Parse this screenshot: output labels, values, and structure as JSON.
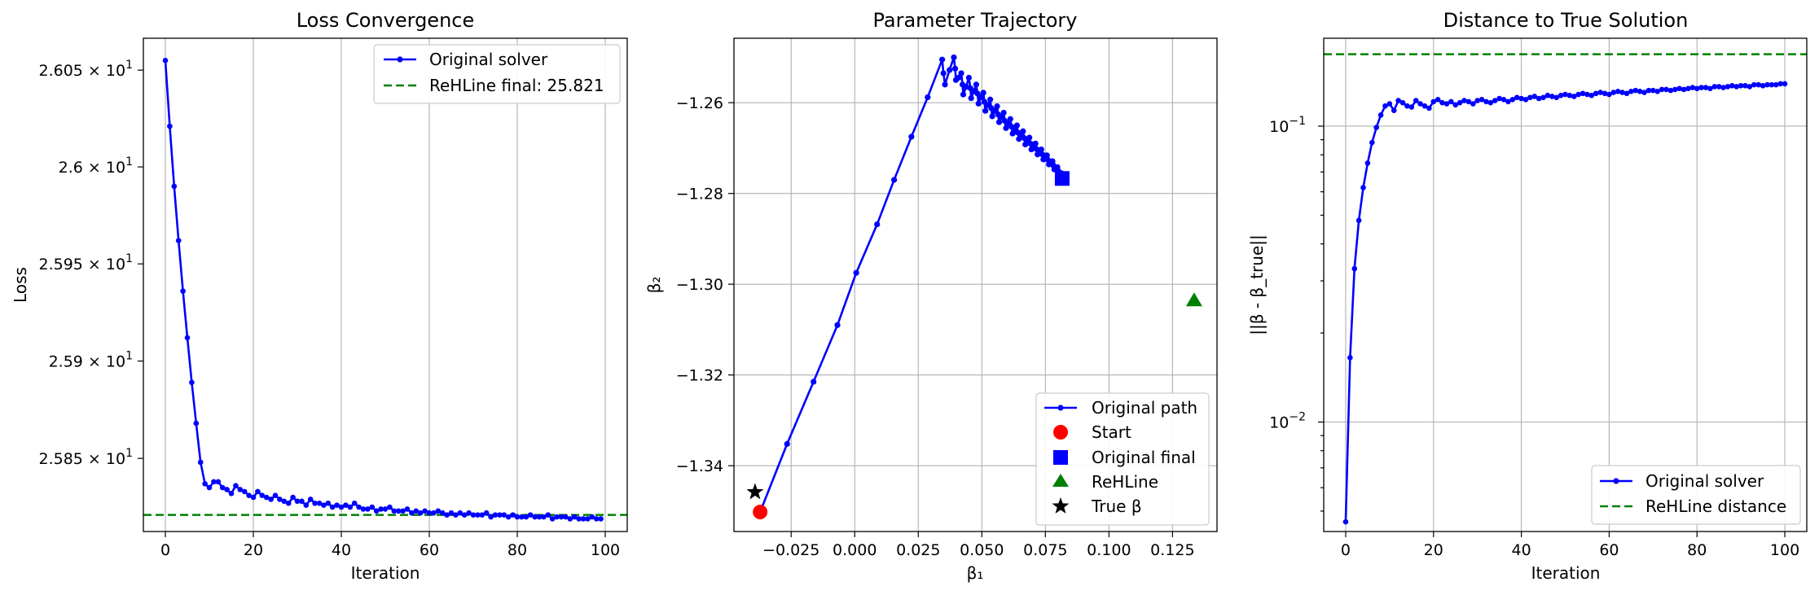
{
  "colors": {
    "solver": "#0000ff",
    "rehline": "#008000",
    "start": "#ff0000",
    "true_beta": "#000000",
    "grid": "#b0b0b0"
  },
  "chart_data": [
    {
      "type": "line",
      "title": "Loss Convergence",
      "xlabel": "Iteration",
      "ylabel": "Loss",
      "xlim": [
        -5,
        105
      ],
      "ylim": [
        25.8125,
        26.0665
      ],
      "y_scale": "log",
      "grid": "x only",
      "xticks": [
        0,
        20,
        40,
        60,
        80,
        100
      ],
      "xtick_labels": [
        "0",
        "20",
        "40",
        "60",
        "80",
        "100"
      ],
      "yticks": [
        26.05,
        26.0,
        25.95,
        25.9,
        25.85
      ],
      "ytick_labels": [
        {
          "mantissa": "2.605",
          "exp": "1"
        },
        {
          "mantissa": "2.6",
          "exp": "1"
        },
        {
          "mantissa": "2.595",
          "exp": "1"
        },
        {
          "mantissa": "2.59",
          "exp": "1"
        },
        {
          "mantissa": "2.585",
          "exp": "1"
        }
      ],
      "legend_position": "upper right",
      "series": [
        {
          "name": "Original solver",
          "style": "line with dot markers",
          "x": [
            0,
            1,
            2,
            3,
            4,
            5,
            6,
            7,
            8,
            9,
            10,
            11,
            12,
            13,
            14,
            15,
            16,
            17,
            18,
            19,
            20,
            21,
            22,
            23,
            24,
            25,
            26,
            27,
            28,
            29,
            30,
            31,
            32,
            33,
            34,
            35,
            36,
            37,
            38,
            39,
            40,
            41,
            42,
            43,
            44,
            45,
            46,
            47,
            48,
            49,
            50,
            51,
            52,
            53,
            54,
            55,
            56,
            57,
            58,
            59,
            60,
            61,
            62,
            63,
            64,
            65,
            66,
            67,
            68,
            69,
            70,
            71,
            72,
            73,
            74,
            75,
            76,
            77,
            78,
            79,
            80,
            81,
            82,
            83,
            84,
            85,
            86,
            87,
            88,
            89,
            90,
            91,
            92,
            93,
            94,
            95,
            96,
            97,
            98,
            99
          ],
          "y": [
            26.055,
            26.021,
            25.99,
            25.962,
            25.936,
            25.912,
            25.889,
            25.868,
            25.848,
            25.837,
            25.835,
            25.838,
            25.838,
            25.835,
            25.834,
            25.832,
            25.836,
            25.834,
            25.833,
            25.831,
            25.83,
            25.833,
            25.831,
            25.83,
            25.829,
            25.831,
            25.829,
            25.828,
            25.827,
            25.83,
            25.828,
            25.828,
            25.826,
            25.829,
            25.827,
            25.827,
            25.826,
            25.827,
            25.825,
            25.826,
            25.825,
            25.826,
            25.825,
            25.827,
            25.825,
            25.824,
            25.824,
            25.825,
            25.823,
            25.824,
            25.824,
            25.825,
            25.823,
            25.823,
            25.823,
            25.824,
            25.822,
            25.823,
            25.822,
            25.823,
            25.822,
            25.822,
            25.823,
            25.822,
            25.821,
            25.822,
            25.821,
            25.822,
            25.821,
            25.822,
            25.821,
            25.821,
            25.821,
            25.822,
            25.82,
            25.821,
            25.821,
            25.821,
            25.82,
            25.821,
            25.82,
            25.82,
            25.82,
            25.821,
            25.82,
            25.82,
            25.82,
            25.821,
            25.819,
            25.82,
            25.82,
            25.82,
            25.819,
            25.82,
            25.819,
            25.819,
            25.819,
            25.82,
            25.819,
            25.819
          ]
        },
        {
          "name": "ReHLine final: 25.821",
          "style": "dashed horizontal line",
          "y": 25.821
        }
      ]
    },
    {
      "type": "scatter",
      "title": "Parameter Trajectory",
      "xlabel": "β₁",
      "ylabel": "β₂",
      "xlim": [
        -0.0475,
        0.1425
      ],
      "ylim": [
        -1.3545,
        -1.2458
      ],
      "grid": "both",
      "xticks": [
        -0.025,
        0.0,
        0.025,
        0.05,
        0.075,
        0.1,
        0.125
      ],
      "xtick_labels": [
        "−0.025",
        "0.000",
        "0.025",
        "0.050",
        "0.075",
        "0.100",
        "0.125"
      ],
      "yticks": [
        -1.26,
        -1.28,
        -1.3,
        -1.32,
        -1.34
      ],
      "ytick_labels": [
        "−1.26",
        "−1.28",
        "−1.30",
        "−1.32",
        "−1.34"
      ],
      "legend_position": "lower right",
      "series": [
        {
          "name": "Original path",
          "style": "line with dot markers",
          "points": [
            [
              -0.0372,
              -1.3502
            ],
            [
              -0.0266,
              -1.3352
            ],
            [
              -0.0162,
              -1.3215
            ],
            [
              -0.0068,
              -1.309
            ],
            [
              0.0006,
              -1.2975
            ],
            [
              0.0088,
              -1.2868
            ],
            [
              0.0155,
              -1.277
            ],
            [
              0.0223,
              -1.2675
            ],
            [
              0.0287,
              -1.2588
            ],
            [
              0.0344,
              -1.2505
            ],
            [
              0.0349,
              -1.2535
            ],
            [
              0.0355,
              -1.256
            ],
            [
              0.0373,
              -1.2528
            ],
            [
              0.039,
              -1.25
            ],
            [
              0.0395,
              -1.2525
            ],
            [
              0.0398,
              -1.255
            ],
            [
              0.0408,
              -1.2545
            ],
            [
              0.0419,
              -1.2535
            ],
            [
              0.0424,
              -1.256
            ],
            [
              0.0427,
              -1.2582
            ],
            [
              0.0438,
              -1.2565
            ],
            [
              0.0449,
              -1.2545
            ],
            [
              0.0455,
              -1.2568
            ],
            [
              0.0458,
              -1.259
            ],
            [
              0.0468,
              -1.2575
            ],
            [
              0.0478,
              -1.256
            ],
            [
              0.0483,
              -1.258
            ],
            [
              0.0487,
              -1.2602
            ],
            [
              0.0496,
              -1.2588
            ],
            [
              0.0506,
              -1.2578
            ],
            [
              0.051,
              -1.2598
            ],
            [
              0.0514,
              -1.2618
            ],
            [
              0.0523,
              -1.2605
            ],
            [
              0.0533,
              -1.2593
            ],
            [
              0.0537,
              -1.2612
            ],
            [
              0.0541,
              -1.263
            ],
            [
              0.055,
              -1.2618
            ],
            [
              0.056,
              -1.2608
            ],
            [
              0.0564,
              -1.2626
            ],
            [
              0.0568,
              -1.2643
            ],
            [
              0.0577,
              -1.2632
            ],
            [
              0.0586,
              -1.2622
            ],
            [
              0.059,
              -1.264
            ],
            [
              0.0595,
              -1.2656
            ],
            [
              0.0603,
              -1.2646
            ],
            [
              0.0612,
              -1.2636
            ],
            [
              0.0617,
              -1.2653
            ],
            [
              0.0621,
              -1.2668
            ],
            [
              0.0629,
              -1.2659
            ],
            [
              0.0638,
              -1.265
            ],
            [
              0.0642,
              -1.2666
            ],
            [
              0.0646,
              -1.268
            ],
            [
              0.0654,
              -1.2671
            ],
            [
              0.0662,
              -1.2663
            ],
            [
              0.0667,
              -1.2678
            ],
            [
              0.0671,
              -1.2692
            ],
            [
              0.0679,
              -1.2684
            ],
            [
              0.0687,
              -1.2677
            ],
            [
              0.0691,
              -1.269
            ],
            [
              0.0695,
              -1.2703
            ],
            [
              0.0703,
              -1.2696
            ],
            [
              0.0711,
              -1.269
            ],
            [
              0.0715,
              -1.2702
            ],
            [
              0.0719,
              -1.2714
            ],
            [
              0.0727,
              -1.2708
            ],
            [
              0.0734,
              -1.2703
            ],
            [
              0.0738,
              -1.2714
            ],
            [
              0.0742,
              -1.2725
            ],
            [
              0.0749,
              -1.272
            ],
            [
              0.0756,
              -1.2716
            ],
            [
              0.076,
              -1.2726
            ],
            [
              0.0764,
              -1.2736
            ],
            [
              0.0771,
              -1.2732
            ],
            [
              0.0778,
              -1.2729
            ],
            [
              0.0781,
              -1.2738
            ],
            [
              0.0785,
              -1.2747
            ],
            [
              0.0791,
              -1.2744
            ],
            [
              0.0797,
              -1.2742
            ],
            [
              0.08,
              -1.275
            ],
            [
              0.0803,
              -1.2758
            ],
            [
              0.0808,
              -1.2756
            ],
            [
              0.0812,
              -1.2755
            ],
            [
              0.0813,
              -1.2762
            ],
            [
              0.0814,
              -1.2768
            ],
            [
              0.0816,
              -1.2767
            ]
          ]
        },
        {
          "name": "Start",
          "marker": "circle",
          "point": [
            -0.0372,
            -1.3502
          ]
        },
        {
          "name": "Original final",
          "marker": "square",
          "point": [
            0.0816,
            -1.2767
          ]
        },
        {
          "name": "ReHLine",
          "marker": "triangle",
          "point": [
            0.1335,
            -1.3036
          ]
        },
        {
          "name": "True β",
          "marker": "star",
          "point": [
            -0.0392,
            -1.3458
          ]
        }
      ]
    },
    {
      "type": "line",
      "title": "Distance to True Solution",
      "xlabel": "Iteration",
      "ylabel": "||β - β_true||",
      "xlim": [
        -5,
        105
      ],
      "ylim_log10": [
        -2.37,
        -0.703
      ],
      "y_scale": "log",
      "grid": "both",
      "xticks": [
        0,
        20,
        40,
        60,
        80,
        100
      ],
      "xtick_labels": [
        "0",
        "20",
        "40",
        "60",
        "80",
        "100"
      ],
      "yticks_log10": [
        -1,
        -2
      ],
      "ytick_labels": [
        {
          "mantissa": "10",
          "exp": "−1"
        },
        {
          "mantissa": "10",
          "exp": "−2"
        }
      ],
      "legend_position": "lower right",
      "series": [
        {
          "name": "Original solver",
          "style": "line with dot markers",
          "x": [
            0,
            1,
            2,
            3,
            4,
            5,
            6,
            7,
            8,
            9,
            10,
            11,
            12,
            13,
            14,
            15,
            16,
            17,
            18,
            19,
            20,
            21,
            22,
            23,
            24,
            25,
            26,
            27,
            28,
            29,
            30,
            31,
            32,
            33,
            34,
            35,
            36,
            37,
            38,
            39,
            40,
            41,
            42,
            43,
            44,
            45,
            46,
            47,
            48,
            49,
            50,
            51,
            52,
            53,
            54,
            55,
            56,
            57,
            58,
            59,
            60,
            61,
            62,
            63,
            64,
            65,
            66,
            67,
            68,
            69,
            70,
            71,
            72,
            73,
            74,
            75,
            76,
            77,
            78,
            79,
            80,
            81,
            82,
            83,
            84,
            85,
            86,
            87,
            88,
            89,
            90,
            91,
            92,
            93,
            94,
            95,
            96,
            97,
            98,
            99,
            100
          ],
          "y": [
            0.0046,
            0.0165,
            0.033,
            0.048,
            0.062,
            0.075,
            0.088,
            0.099,
            0.109,
            0.117,
            0.119,
            0.113,
            0.122,
            0.12,
            0.117,
            0.116,
            0.122,
            0.119,
            0.117,
            0.115,
            0.121,
            0.123,
            0.12,
            0.119,
            0.121,
            0.118,
            0.12,
            0.122,
            0.121,
            0.119,
            0.122,
            0.123,
            0.121,
            0.12,
            0.122,
            0.124,
            0.123,
            0.121,
            0.123,
            0.125,
            0.124,
            0.123,
            0.125,
            0.126,
            0.124,
            0.125,
            0.127,
            0.126,
            0.125,
            0.127,
            0.128,
            0.127,
            0.126,
            0.128,
            0.129,
            0.128,
            0.127,
            0.129,
            0.13,
            0.129,
            0.128,
            0.13,
            0.131,
            0.13,
            0.129,
            0.131,
            0.132,
            0.131,
            0.13,
            0.132,
            0.132,
            0.131,
            0.133,
            0.133,
            0.132,
            0.133,
            0.134,
            0.133,
            0.134,
            0.135,
            0.134,
            0.135,
            0.135,
            0.134,
            0.136,
            0.136,
            0.135,
            0.136,
            0.137,
            0.136,
            0.137,
            0.137,
            0.136,
            0.138,
            0.138,
            0.137,
            0.138,
            0.138,
            0.138,
            0.139,
            0.139
          ]
        },
        {
          "name": "ReHLine distance",
          "style": "dashed horizontal line",
          "y": 0.175
        }
      ]
    }
  ]
}
